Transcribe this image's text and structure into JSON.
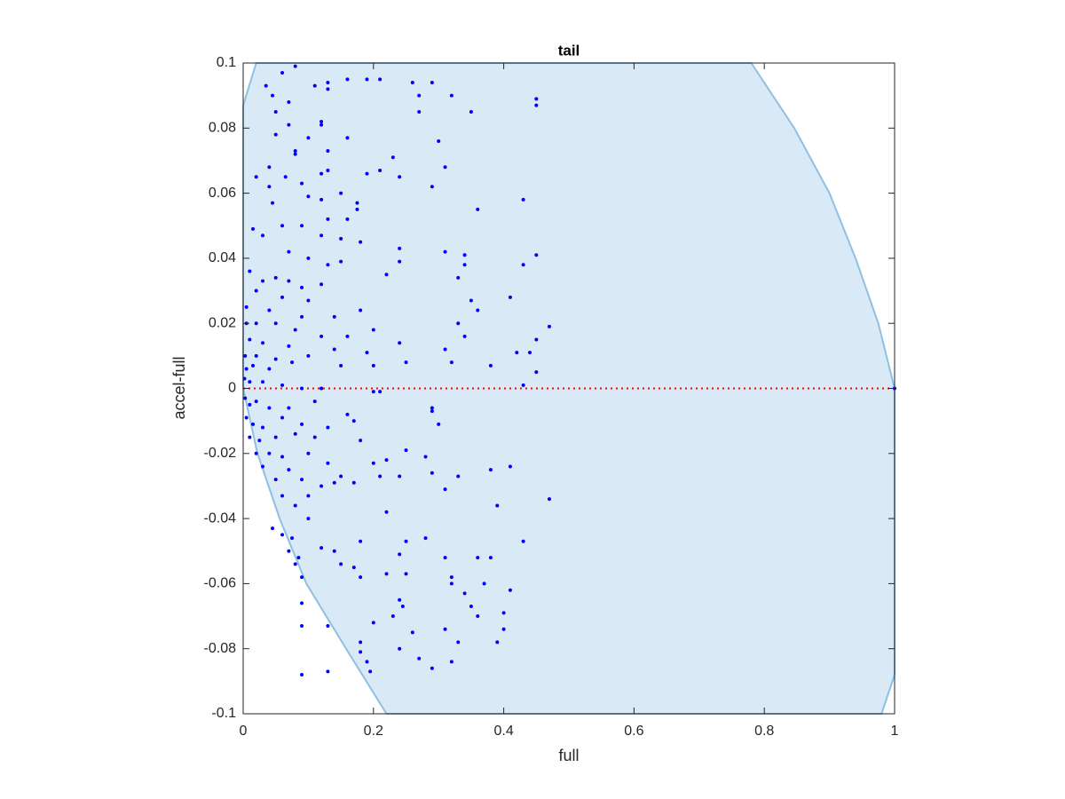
{
  "chart_data": {
    "type": "scatter",
    "title": "tail",
    "xlabel": "full",
    "ylabel": "accel-full",
    "xlim": [
      0,
      1
    ],
    "ylim": [
      -0.1,
      0.1
    ],
    "xticks": [
      0,
      0.2,
      0.4,
      0.6,
      0.8,
      1
    ],
    "yticks": [
      -0.1,
      -0.08,
      -0.06,
      -0.04,
      -0.02,
      0,
      0.02,
      0.04,
      0.06,
      0.08,
      0.1
    ],
    "grid": false,
    "region": {
      "color": "#d9e9f5",
      "edge_color": "#8fc0e3",
      "x": [
        0.02,
        0.78,
        0.846,
        0.9,
        0.94,
        0.975,
        1,
        1,
        0.98,
        0.22,
        0.158,
        0.097,
        0.056,
        0.022,
        0,
        0
      ],
      "y": [
        0.1,
        0.1,
        0.08,
        0.06,
        0.04,
        0.02,
        0,
        -0.088,
        -0.1,
        -0.1,
        -0.08,
        -0.06,
        -0.04,
        -0.02,
        0,
        0.087
      ]
    },
    "reference_line": {
      "y": 0,
      "color": "#ff0000"
    },
    "series": [
      {
        "color": "#0000ff",
        "x": [
          0.08,
          0.06,
          0.035,
          0.045,
          0.07,
          0.05,
          0.11,
          0.13,
          0.13,
          0.16,
          0.19,
          0.21,
          0.26,
          0.29,
          0.27,
          0.32,
          0.27,
          0.35,
          0.45,
          0.45,
          0.12,
          0.12,
          0.05,
          0.07,
          0.1,
          0.16,
          0.3,
          0.08,
          0.08,
          0.13,
          0.13,
          0.21,
          0.23,
          0.31,
          0.24,
          0.04,
          0.02,
          0.065,
          0.12,
          0.19,
          0.29,
          0.04,
          0.09,
          0.1,
          0.045,
          0.12,
          0.15,
          0.175,
          0.175,
          0.015,
          0.03,
          0.06,
          0.09,
          0.13,
          0.16,
          0.36,
          0.43,
          0.12,
          0.15,
          0.18,
          0.24,
          0.31,
          0.34,
          0.45,
          0.07,
          0.1,
          0.13,
          0.15,
          0.24,
          0.34,
          0.43,
          0.01,
          0.03,
          0.05,
          0.07,
          0.09,
          0.12,
          0.22,
          0.33,
          0.41,
          0.02,
          0.06,
          0.1,
          0.35,
          0.005,
          0.04,
          0.09,
          0.14,
          0.18,
          0.36,
          0.005,
          0.02,
          0.05,
          0.08,
          0.12,
          0.2,
          0.33,
          0.45,
          0.47,
          0.01,
          0.03,
          0.07,
          0.14,
          0.16,
          0.24,
          0.34,
          0.003,
          0.02,
          0.05,
          0.1,
          0.19,
          0.31,
          0.42,
          0.44,
          0.005,
          0.015,
          0.04,
          0.075,
          0.15,
          0.2,
          0.25,
          0.32,
          0.38,
          0.45,
          0.002,
          0.01,
          0.03,
          0.06,
          0.09,
          0.12,
          0.2,
          0.21,
          0.43,
          1,
          0.003,
          0.01,
          0.02,
          0.04,
          0.07,
          0.11,
          0.16,
          0.29,
          0.29,
          0.005,
          0.015,
          0.03,
          0.06,
          0.09,
          0.13,
          0.17,
          0.3,
          0.01,
          0.025,
          0.05,
          0.08,
          0.11,
          0.18,
          0.02,
          0.04,
          0.06,
          0.1,
          0.25,
          0.28,
          0.03,
          0.07,
          0.13,
          0.2,
          0.22,
          0.38,
          0.41,
          0.05,
          0.09,
          0.12,
          0.15,
          0.21,
          0.24,
          0.29,
          0.33,
          0.06,
          0.1,
          0.14,
          0.31,
          0.17,
          0.08,
          0.22,
          0.39,
          0.47,
          0.1,
          0.045,
          0.06,
          0.075,
          0.18,
          0.25,
          0.28,
          0.43,
          0.07,
          0.085,
          0.12,
          0.14,
          0.08,
          0.15,
          0.24,
          0.31,
          0.36,
          0.38,
          0.17,
          0.18,
          0.09,
          0.22,
          0.25,
          0.32,
          0.32,
          0.34,
          0.37,
          0.41,
          0.24,
          0.245,
          0.09,
          0.35,
          0.36,
          0.4,
          0.2,
          0.23,
          0.13,
          0.09,
          0.26,
          0.31,
          0.4,
          0.18,
          0.18,
          0.24,
          0.33,
          0.39,
          0.19,
          0.27,
          0.29,
          0.32,
          0.13,
          0.09,
          0.195
        ],
        "y": [
          0.099,
          0.097,
          0.093,
          0.09,
          0.088,
          0.085,
          0.093,
          0.094,
          0.092,
          0.095,
          0.095,
          0.095,
          0.094,
          0.094,
          0.09,
          0.09,
          0.085,
          0.085,
          0.089,
          0.087,
          0.082,
          0.081,
          0.078,
          0.081,
          0.077,
          0.077,
          0.076,
          0.072,
          0.073,
          0.073,
          0.067,
          0.067,
          0.071,
          0.068,
          0.065,
          0.068,
          0.065,
          0.065,
          0.066,
          0.066,
          0.062,
          0.062,
          0.063,
          0.059,
          0.057,
          0.058,
          0.06,
          0.057,
          0.055,
          0.049,
          0.047,
          0.05,
          0.05,
          0.052,
          0.052,
          0.055,
          0.058,
          0.047,
          0.046,
          0.045,
          0.043,
          0.042,
          0.041,
          0.041,
          0.042,
          0.04,
          0.038,
          0.039,
          0.039,
          0.038,
          0.038,
          0.036,
          0.033,
          0.034,
          0.033,
          0.031,
          0.032,
          0.035,
          0.034,
          0.028,
          0.03,
          0.028,
          0.027,
          0.027,
          0.025,
          0.024,
          0.022,
          0.022,
          0.024,
          0.024,
          0.02,
          0.02,
          0.02,
          0.018,
          0.016,
          0.018,
          0.02,
          0.015,
          0.019,
          0.015,
          0.014,
          0.013,
          0.012,
          0.016,
          0.014,
          0.016,
          0.01,
          0.01,
          0.009,
          0.01,
          0.011,
          0.012,
          0.011,
          0.011,
          0.006,
          0.007,
          0.006,
          0.008,
          0.007,
          0.007,
          0.008,
          0.008,
          0.007,
          0.005,
          0.003,
          0.002,
          0.002,
          0.001,
          0,
          0,
          -0.001,
          -0.001,
          0.001,
          0,
          -0.003,
          -0.005,
          -0.004,
          -0.006,
          -0.006,
          -0.004,
          -0.008,
          -0.006,
          -0.007,
          -0.009,
          -0.011,
          -0.012,
          -0.009,
          -0.011,
          -0.012,
          -0.01,
          -0.011,
          -0.015,
          -0.016,
          -0.015,
          -0.014,
          -0.015,
          -0.016,
          -0.02,
          -0.02,
          -0.021,
          -0.02,
          -0.019,
          -0.021,
          -0.024,
          -0.025,
          -0.023,
          -0.023,
          -0.022,
          -0.025,
          -0.024,
          -0.028,
          -0.028,
          -0.03,
          -0.027,
          -0.027,
          -0.027,
          -0.026,
          -0.027,
          -0.033,
          -0.033,
          -0.029,
          -0.031,
          -0.029,
          -0.036,
          -0.038,
          -0.036,
          -0.034,
          -0.04,
          -0.043,
          -0.045,
          -0.046,
          -0.047,
          -0.047,
          -0.046,
          -0.047,
          -0.05,
          -0.052,
          -0.049,
          -0.05,
          -0.054,
          -0.054,
          -0.051,
          -0.052,
          -0.052,
          -0.052,
          -0.055,
          -0.058,
          -0.058,
          -0.057,
          -0.057,
          -0.058,
          -0.06,
          -0.063,
          -0.06,
          -0.062,
          -0.065,
          -0.067,
          -0.066,
          -0.067,
          -0.07,
          -0.069,
          -0.072,
          -0.07,
          -0.073,
          -0.073,
          -0.075,
          -0.074,
          -0.074,
          -0.078,
          -0.081,
          -0.08,
          -0.078,
          -0.078,
          -0.084,
          -0.083,
          -0.086,
          -0.084,
          -0.087,
          -0.088,
          -0.087
        ]
      }
    ]
  }
}
